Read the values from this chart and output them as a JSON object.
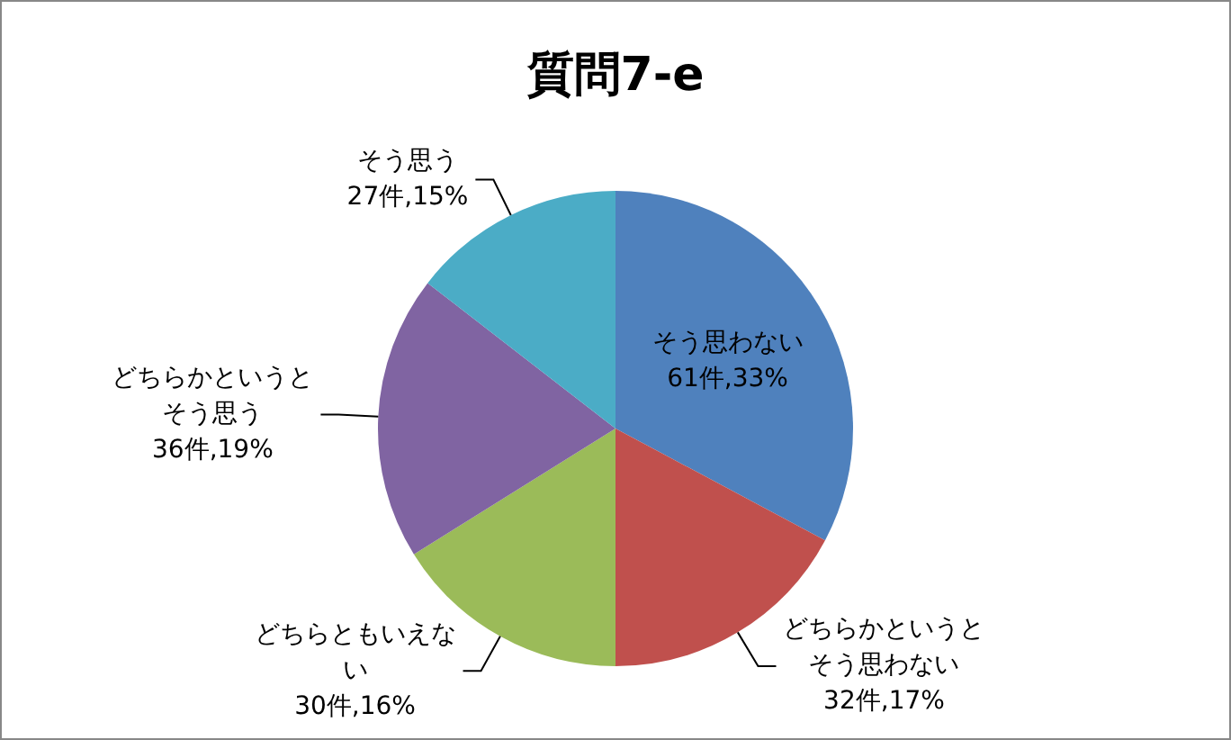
{
  "chart_data": {
    "type": "pie",
    "title": "質問7-e",
    "categories": [
      "そう思わない",
      "どちらかというとそう思わない",
      "どちらともいえない",
      "どちらかというとそう思う",
      "そう思う"
    ],
    "values": [
      61,
      32,
      30,
      36,
      27
    ],
    "value_labels": [
      "61件,33%",
      "32件,17%",
      "30件,16%",
      "36件,19%",
      "27件,15%"
    ],
    "colors": [
      "#4f81bd",
      "#c0504d",
      "#9bbb59",
      "#8064a2",
      "#4bacc6"
    ],
    "legend": false
  }
}
